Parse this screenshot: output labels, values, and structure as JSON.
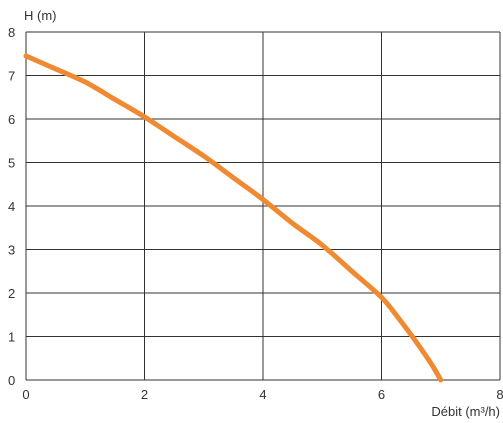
{
  "chart_data": {
    "type": "line",
    "xlabel": "Débit (m³/h)",
    "ylabel": "H (m)",
    "xlim": [
      0,
      8
    ],
    "ylim": [
      0,
      8
    ],
    "xticks": [
      "0",
      "2",
      "4",
      "6",
      "8"
    ],
    "yticks": [
      "0",
      "1",
      "2",
      "3",
      "4",
      "5",
      "6",
      "7",
      "8"
    ],
    "grid": true,
    "series": [
      {
        "color": "#f08a32",
        "x": [
          0,
          0.5,
          1,
          1.5,
          2,
          2.5,
          3,
          3.5,
          4,
          4.5,
          5,
          5.5,
          6,
          6.3,
          6.6,
          6.85,
          7.0
        ],
        "y": [
          7.45,
          7.15,
          6.85,
          6.45,
          6.05,
          5.6,
          5.15,
          4.65,
          4.15,
          3.6,
          3.1,
          2.5,
          1.9,
          1.4,
          0.85,
          0.35,
          0
        ]
      }
    ]
  }
}
